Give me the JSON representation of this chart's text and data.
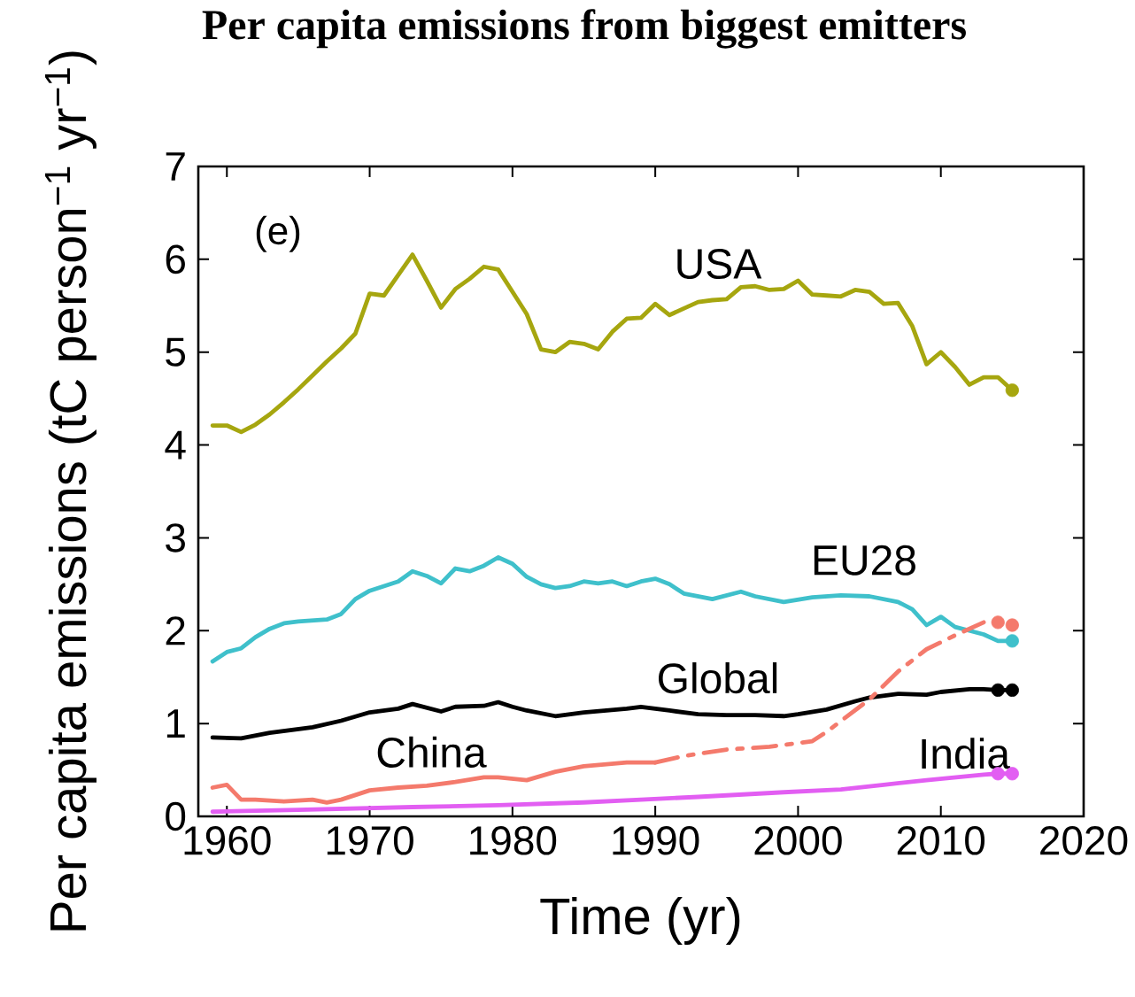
{
  "chart_data": {
    "type": "line",
    "title": "Per capita emissions from biggest emitters",
    "xlabel": "Time (yr)",
    "ylabel": "Per capita emissions (tC person$^{−1}$ yr$^{−1}$)",
    "annotations": [
      "(e)"
    ],
    "xlim": [
      1958,
      2020
    ],
    "ylim": [
      0,
      7
    ],
    "xticks": [
      1960,
      1970,
      1980,
      1990,
      2000,
      2010,
      2020
    ],
    "yticks": [
      0,
      1,
      2,
      3,
      4,
      5,
      6,
      7
    ],
    "line_style": "solid",
    "series": [
      {
        "name": "USA",
        "color": "#a6a60f",
        "x": [
          1959,
          1960,
          1961,
          1962,
          1963,
          1964,
          1965,
          1966,
          1967,
          1968,
          1969,
          1970,
          1971,
          1972,
          1973,
          1974,
          1975,
          1976,
          1977,
          1978,
          1979,
          1980,
          1981,
          1982,
          1983,
          1984,
          1985,
          1986,
          1987,
          1988,
          1989,
          1990,
          1991,
          1992,
          1993,
          1994,
          1995,
          1996,
          1997,
          1998,
          1999,
          2000,
          2001,
          2002,
          2003,
          2004,
          2005,
          2006,
          2007,
          2008,
          2009,
          2010,
          2011,
          2012,
          2013,
          2014,
          2015
        ],
        "values": [
          4.21,
          4.21,
          4.14,
          4.22,
          4.33,
          4.46,
          4.6,
          4.75,
          4.9,
          5.04,
          5.2,
          5.63,
          5.61,
          5.83,
          6.05,
          5.77,
          5.48,
          5.68,
          5.79,
          5.92,
          5.89,
          5.65,
          5.41,
          5.03,
          5.0,
          5.11,
          5.09,
          5.03,
          5.22,
          5.36,
          5.37,
          5.52,
          5.4,
          5.47,
          5.54,
          5.56,
          5.57,
          5.7,
          5.71,
          5.67,
          5.68,
          5.77,
          5.62,
          5.61,
          5.6,
          5.67,
          5.65,
          5.52,
          5.53,
          5.28,
          4.87,
          5.0,
          4.84,
          4.65,
          4.73,
          4.73,
          4.59
        ]
      },
      {
        "name": "EU28",
        "color": "#3fc0cb",
        "x": [
          1959,
          1960,
          1961,
          1962,
          1963,
          1964,
          1965,
          1967,
          1968,
          1969,
          1970,
          1971,
          1972,
          1973,
          1974,
          1975,
          1976,
          1977,
          1978,
          1979,
          1980,
          1981,
          1982,
          1983,
          1984,
          1985,
          1986,
          1987,
          1988,
          1989,
          1990,
          1991,
          1992,
          1994,
          1996,
          1997,
          1999,
          2001,
          2003,
          2005,
          2007,
          2008,
          2009,
          2010,
          2011,
          2012,
          2013,
          2014,
          2015
        ],
        "values": [
          1.67,
          1.77,
          1.81,
          1.93,
          2.02,
          2.08,
          2.1,
          2.12,
          2.18,
          2.34,
          2.43,
          2.48,
          2.53,
          2.64,
          2.59,
          2.51,
          2.67,
          2.64,
          2.7,
          2.79,
          2.72,
          2.58,
          2.5,
          2.46,
          2.48,
          2.53,
          2.51,
          2.53,
          2.48,
          2.53,
          2.56,
          2.5,
          2.4,
          2.34,
          2.42,
          2.37,
          2.31,
          2.36,
          2.38,
          2.37,
          2.31,
          2.23,
          2.06,
          2.15,
          2.04,
          2.0,
          1.96,
          1.89,
          1.89
        ]
      },
      {
        "name": "Global",
        "color": "#000000",
        "x": [
          1959,
          1961,
          1963,
          1966,
          1968,
          1970,
          1972,
          1973,
          1975,
          1976,
          1978,
          1979,
          1980,
          1981,
          1983,
          1985,
          1988,
          1989,
          1991,
          1993,
          1995,
          1997,
          1999,
          2000,
          2002,
          2004,
          2005,
          2007,
          2009,
          2010,
          2012,
          2013,
          2014,
          2015
        ],
        "values": [
          0.85,
          0.84,
          0.9,
          0.96,
          1.03,
          1.12,
          1.16,
          1.21,
          1.13,
          1.18,
          1.19,
          1.23,
          1.18,
          1.14,
          1.08,
          1.12,
          1.16,
          1.18,
          1.14,
          1.1,
          1.09,
          1.09,
          1.08,
          1.1,
          1.15,
          1.24,
          1.28,
          1.32,
          1.31,
          1.34,
          1.37,
          1.37,
          1.36,
          1.36
        ]
      },
      {
        "name": "China",
        "color": "#f47a6c",
        "x": [
          1959,
          1960,
          1961,
          1962,
          1964,
          1966,
          1967,
          1968,
          1970,
          1972,
          1974,
          1976,
          1978,
          1979,
          1981,
          1983,
          1985,
          1988,
          1990
        ],
        "values": [
          0.31,
          0.34,
          0.18,
          0.18,
          0.16,
          0.18,
          0.15,
          0.18,
          0.28,
          0.31,
          0.33,
          0.37,
          0.42,
          0.42,
          0.39,
          0.48,
          0.54,
          0.58,
          0.58
        ]
      },
      {
        "color": "#f47a6c",
        "line_style": "dashdot",
        "x": [
          1990,
          1992,
          1995,
          1998,
          2001,
          2002,
          2005,
          2007,
          2009,
          2011,
          2013
        ],
        "values": [
          0.58,
          0.65,
          0.72,
          0.75,
          0.81,
          0.91,
          1.26,
          1.56,
          1.8,
          1.95,
          2.09
        ]
      },
      {
        "name": "India",
        "color": "#e25ef2",
        "x": [
          1959,
          1965,
          1973,
          1979,
          1985,
          1989,
          1993,
          1999,
          2003,
          2006,
          2009,
          2011,
          2013,
          2014,
          2015
        ],
        "values": [
          0.05,
          0.07,
          0.1,
          0.12,
          0.15,
          0.18,
          0.21,
          0.26,
          0.29,
          0.34,
          0.39,
          0.42,
          0.45,
          0.46,
          0.46
        ]
      },
      {
        "type": "scatter",
        "marker": "circle",
        "color": "#a6a60f",
        "x": [
          2015
        ],
        "values": [
          4.59
        ]
      },
      {
        "type": "scatter",
        "marker": "circle",
        "color": "#3fc0cb",
        "x": [
          2015
        ],
        "values": [
          1.89
        ]
      },
      {
        "type": "scatter",
        "marker": "circle",
        "color": "#000000",
        "x": [
          2014,
          2015
        ],
        "values": [
          1.36,
          1.36
        ]
      },
      {
        "type": "scatter",
        "marker": "circle",
        "color": "#f47a6c",
        "x": [
          2014,
          2015
        ],
        "values": [
          2.09,
          2.06
        ]
      },
      {
        "type": "scatter",
        "marker": "circle",
        "color": "#e25ef2",
        "x": [
          2014,
          2015
        ],
        "values": [
          0.46,
          0.46
        ]
      }
    ]
  }
}
